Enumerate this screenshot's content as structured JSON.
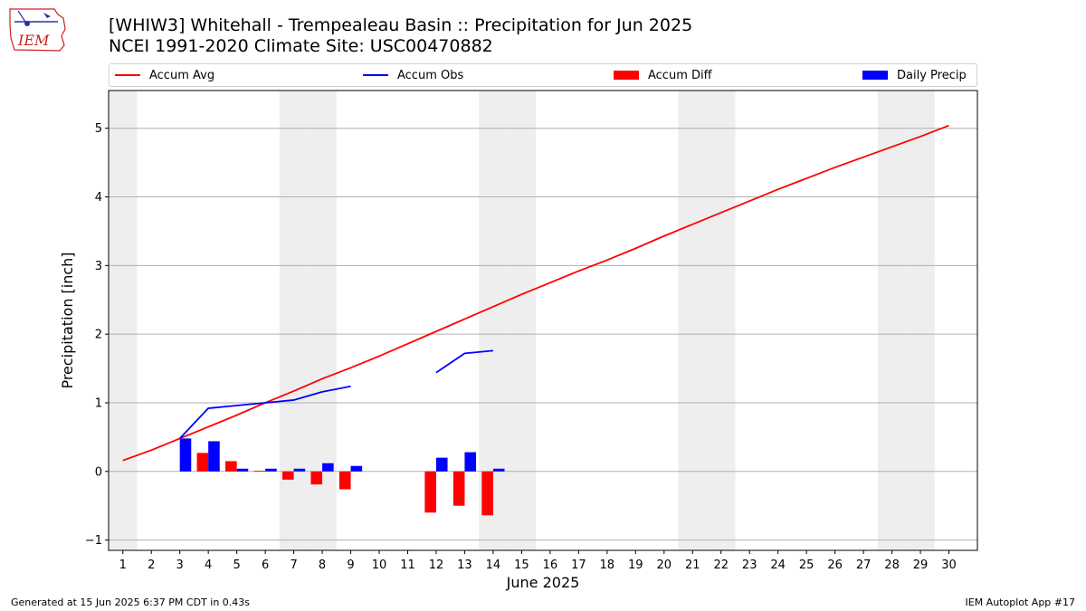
{
  "header": {
    "title_line1": "[WHIW3] Whitehall - Trempealeau Basin :: Precipitation for Jun 2025",
    "title_line2": "NCEI 1991-2020 Climate Site: USC00470882",
    "logo_text": "IEM"
  },
  "footer": {
    "generated": "Generated at 15 Jun 2025 6:37 PM CDT in 0.43s",
    "app": "IEM Autoplot App #17"
  },
  "colors": {
    "accum_avg": "#ff0000",
    "accum_obs": "#0000ff",
    "accum_diff": "#ff0000",
    "daily_precip": "#0000ff",
    "weekend_shade": "#eeeeee",
    "grid": "#b0b0b0"
  },
  "chart_data": {
    "type": "bar",
    "xlabel": "June 2025",
    "ylabel": "Precipitation [inch]",
    "ylim": [
      -1.15,
      5.55
    ],
    "xlim": [
      0.5,
      31.0
    ],
    "grid": "horizontal",
    "legend_position": "top",
    "x": [
      1,
      2,
      3,
      4,
      5,
      6,
      7,
      8,
      9,
      10,
      11,
      12,
      13,
      14,
      15,
      16,
      17,
      18,
      19,
      20,
      21,
      22,
      23,
      24,
      25,
      26,
      27,
      28,
      29,
      30
    ],
    "yticks": [
      -1,
      0,
      1,
      2,
      3,
      4,
      5
    ],
    "weekend_days": [
      1,
      7,
      8,
      14,
      15,
      21,
      22,
      28,
      29
    ],
    "series": [
      {
        "name": "Accum Avg",
        "kind": "line",
        "x": [
          1,
          2,
          3,
          4,
          5,
          6,
          7,
          8,
          9,
          10,
          11,
          12,
          13,
          14,
          15,
          16,
          17,
          18,
          19,
          20,
          21,
          22,
          23,
          24,
          25,
          26,
          27,
          28,
          29,
          30
        ],
        "values": [
          0.16,
          0.31,
          0.48,
          0.65,
          0.82,
          1.0,
          1.17,
          1.35,
          1.51,
          1.68,
          1.86,
          2.04,
          2.22,
          2.4,
          2.58,
          2.75,
          2.92,
          3.08,
          3.25,
          3.43,
          3.6,
          3.77,
          3.94,
          4.11,
          4.27,
          4.43,
          4.58,
          4.73,
          4.88,
          5.04
        ]
      },
      {
        "name": "Accum Obs",
        "kind": "line",
        "segments": [
          {
            "x": [
              3,
              4,
              5,
              6,
              7,
              8,
              9
            ],
            "values": [
              0.48,
              0.92,
              0.96,
              1.0,
              1.04,
              1.16,
              1.24
            ]
          },
          {
            "x": [
              12,
              13,
              14
            ],
            "values": [
              1.44,
              1.72,
              1.76
            ]
          }
        ]
      },
      {
        "name": "Accum Diff",
        "kind": "bar",
        "x": [
          4,
          5,
          6,
          7,
          8,
          9,
          12,
          13,
          14
        ],
        "values": [
          0.27,
          0.15,
          0.01,
          -0.12,
          -0.19,
          -0.26,
          -0.6,
          -0.5,
          -0.64
        ]
      },
      {
        "name": "Daily Precip",
        "kind": "bar",
        "x": [
          3,
          4,
          5,
          6,
          7,
          8,
          9,
          12,
          13,
          14
        ],
        "values": [
          0.48,
          0.44,
          0.04,
          0.04,
          0.04,
          0.12,
          0.08,
          0.2,
          0.28,
          0.04
        ]
      }
    ]
  }
}
